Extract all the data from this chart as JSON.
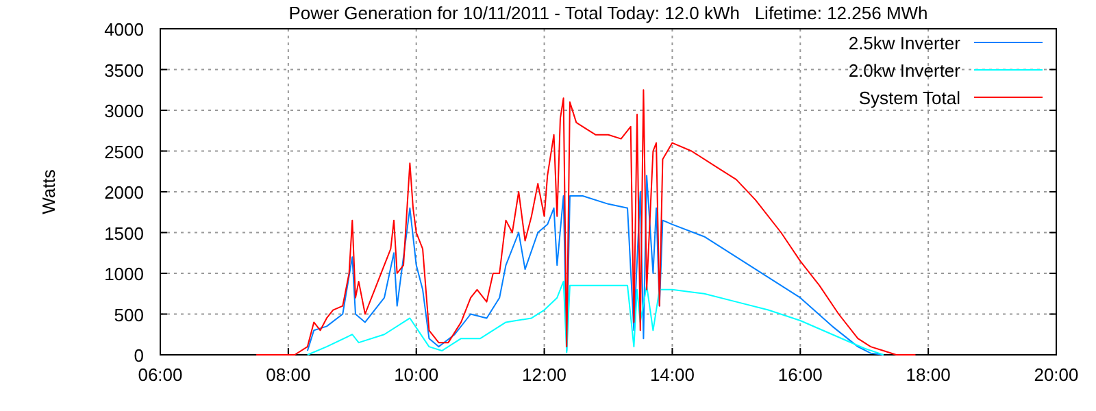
{
  "chart_data": {
    "type": "line",
    "title": "Power Generation for 10/11/2011 - Total Today: 12.0 kWh   Lifetime: 12.256 MWh",
    "ylabel": "Watts",
    "xlim": [
      6,
      20
    ],
    "xticks": [
      {
        "value": 6,
        "label": "06:00"
      },
      {
        "value": 8,
        "label": "08:00"
      },
      {
        "value": 10,
        "label": "10:00"
      },
      {
        "value": 12,
        "label": "12:00"
      },
      {
        "value": 14,
        "label": "14:00"
      },
      {
        "value": 16,
        "label": "16:00"
      },
      {
        "value": 18,
        "label": "18:00"
      },
      {
        "value": 20,
        "label": "20:00"
      }
    ],
    "ylim": [
      0,
      4000
    ],
    "yticks": [
      0,
      500,
      1000,
      1500,
      2000,
      2500,
      3000,
      3500,
      4000
    ],
    "grid": true,
    "legend": "top right",
    "line_style": "solid",
    "marker": "none",
    "series": [
      {
        "name": "2.5kw Inverter",
        "color": "#0080ff",
        "x": [
          8.3,
          8.4,
          8.6,
          8.85,
          9.0,
          9.05,
          9.2,
          9.5,
          9.65,
          9.7,
          9.9,
          10.0,
          10.1,
          10.2,
          10.35,
          10.6,
          10.85,
          11.1,
          11.3,
          11.4,
          11.6,
          11.7,
          11.9,
          12.05,
          12.15,
          12.2,
          12.3,
          12.35,
          12.4,
          12.6,
          13.0,
          13.3,
          13.4,
          13.5,
          13.55,
          13.6,
          13.7,
          13.75,
          13.8,
          13.85,
          14.0,
          14.5,
          15.0,
          15.5,
          16.0,
          16.5,
          16.9,
          17.1,
          17.3
        ],
        "values": [
          50,
          300,
          350,
          500,
          1200,
          500,
          400,
          700,
          1250,
          600,
          1800,
          1100,
          800,
          200,
          100,
          250,
          500,
          450,
          700,
          1100,
          1500,
          1050,
          1500,
          1600,
          1800,
          1100,
          1950,
          50,
          1950,
          1950,
          1850,
          1800,
          300,
          2000,
          200,
          2200,
          1000,
          1800,
          600,
          1650,
          1600,
          1450,
          1200,
          950,
          700,
          350,
          100,
          20,
          0
        ]
      },
      {
        "name": "2.0kw Inverter",
        "color": "#00ffff",
        "x": [
          8.3,
          8.6,
          9.0,
          9.1,
          9.5,
          9.9,
          10.2,
          10.4,
          10.7,
          11.0,
          11.4,
          11.8,
          12.0,
          12.2,
          12.3,
          12.35,
          12.4,
          12.6,
          13.0,
          13.3,
          13.4,
          13.45,
          13.5,
          13.6,
          13.7,
          13.8,
          14.0,
          14.5,
          15.0,
          15.5,
          16.0,
          16.5,
          17.0,
          17.3
        ],
        "values": [
          0,
          100,
          250,
          150,
          250,
          450,
          100,
          50,
          200,
          200,
          400,
          450,
          550,
          700,
          900,
          30,
          850,
          850,
          850,
          850,
          100,
          800,
          400,
          850,
          300,
          800,
          800,
          750,
          650,
          550,
          420,
          250,
          80,
          0
        ]
      },
      {
        "name": "System Total",
        "color": "#ff0000",
        "x": [
          7.5,
          7.9,
          8.1,
          8.3,
          8.4,
          8.5,
          8.6,
          8.7,
          8.85,
          8.95,
          9.0,
          9.05,
          9.1,
          9.2,
          9.35,
          9.5,
          9.6,
          9.65,
          9.7,
          9.8,
          9.9,
          9.95,
          10.0,
          10.1,
          10.2,
          10.35,
          10.5,
          10.7,
          10.85,
          10.95,
          11.1,
          11.2,
          11.3,
          11.4,
          11.5,
          11.6,
          11.7,
          11.8,
          11.9,
          12.0,
          12.05,
          12.15,
          12.2,
          12.25,
          12.3,
          12.35,
          12.4,
          12.5,
          12.6,
          12.8,
          13.0,
          13.2,
          13.35,
          13.4,
          13.45,
          13.5,
          13.55,
          13.6,
          13.7,
          13.75,
          13.8,
          13.85,
          14.0,
          14.3,
          14.7,
          15.0,
          15.3,
          15.7,
          16.0,
          16.3,
          16.6,
          16.9,
          17.1,
          17.3,
          17.5,
          17.8
        ],
        "values": [
          0,
          0,
          0,
          100,
          400,
          300,
          450,
          550,
          600,
          1000,
          1650,
          700,
          900,
          500,
          800,
          1100,
          1300,
          1650,
          1000,
          1100,
          2350,
          1800,
          1500,
          1300,
          300,
          150,
          150,
          400,
          700,
          800,
          650,
          1000,
          1000,
          1650,
          1500,
          2000,
          1400,
          1700,
          2100,
          1700,
          2200,
          2700,
          1700,
          2900,
          3150,
          100,
          3100,
          2850,
          2800,
          2700,
          2700,
          2650,
          2800,
          400,
          2950,
          300,
          3250,
          800,
          2500,
          2600,
          600,
          2400,
          2600,
          2500,
          2300,
          2150,
          1900,
          1500,
          1150,
          850,
          500,
          200,
          100,
          50,
          0,
          0
        ]
      }
    ]
  }
}
